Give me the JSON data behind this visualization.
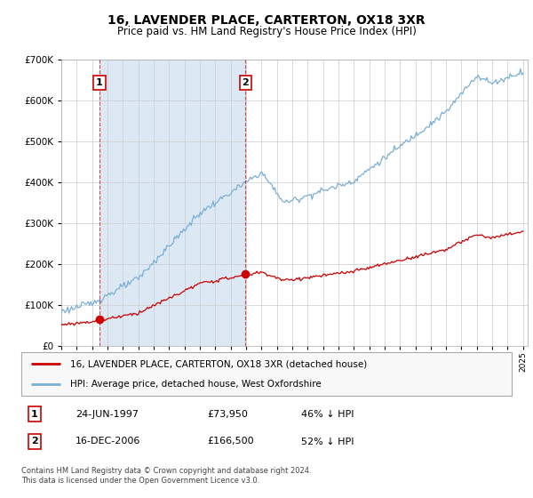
{
  "title": "16, LAVENDER PLACE, CARTERTON, OX18 3XR",
  "subtitle": "Price paid vs. HM Land Registry's House Price Index (HPI)",
  "hpi_label": "HPI: Average price, detached house, West Oxfordshire",
  "property_label": "16, LAVENDER PLACE, CARTERTON, OX18 3XR (detached house)",
  "transaction1_date": "24-JUN-1997",
  "transaction1_price": "£73,950",
  "transaction1_pct": "46% ↓ HPI",
  "transaction2_date": "16-DEC-2006",
  "transaction2_price": "£166,500",
  "transaction2_pct": "52% ↓ HPI",
  "footer": "Contains HM Land Registry data © Crown copyright and database right 2024.\nThis data is licensed under the Open Government Licence v3.0.",
  "ylim": [
    0,
    700000
  ],
  "yticks": [
    0,
    100000,
    200000,
    300000,
    400000,
    500000,
    600000,
    700000
  ],
  "hpi_color": "#7bafd4",
  "hpi_fill_color": "#dce9f5",
  "property_color": "#cc0000",
  "vline_color": "#cc0000",
  "plot_bg": "#ffffff",
  "grid_color": "#cccccc",
  "legend_bg": "#f8f8f8",
  "transaction1_year": 1997.48,
  "transaction2_year": 2006.96,
  "xlim_left": 1995.0,
  "xlim_right": 2025.3
}
